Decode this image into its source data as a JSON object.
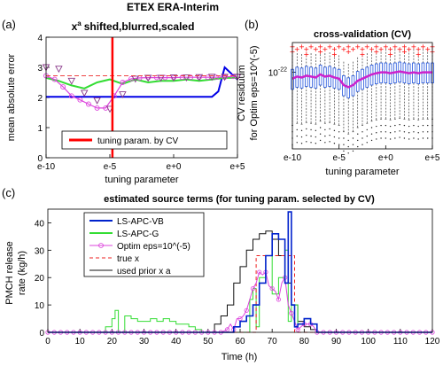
{
  "figure_title": "ETEX ERA-Interim",
  "panel_labels": [
    "(a)",
    "(b)",
    "(c)"
  ],
  "chart_data": [
    {
      "type": "line",
      "panel": "(a)",
      "title": "x^a shifted,blurred,scaled",
      "title_base": "x",
      "title_sup": "a",
      "title_rest": "shifted,blurred,scaled",
      "xlabel": "tuning parameter",
      "ylabel": "mean absolute error",
      "xlim": [
        -10,
        5
      ],
      "ylim": [
        0,
        4
      ],
      "xticks": [
        -10,
        -5,
        0,
        5
      ],
      "xtick_labels": [
        "e-10",
        "e-5",
        "e+0",
        "e+5"
      ],
      "yticks": [
        0,
        1,
        2,
        3,
        4
      ],
      "ytick_labels": [
        "0",
        "1",
        "2",
        "3",
        "4"
      ],
      "grid": false,
      "legend": {
        "placement": "bottom",
        "entries": [
          "tuning param. by CV"
        ]
      },
      "tuning_line": {
        "x": -4.8,
        "color": "#ff0000"
      },
      "series": [
        {
          "color": "#0000e6",
          "style": "solid",
          "x": [
            -10,
            -9,
            -8,
            -7,
            -6,
            -5,
            -4,
            -3,
            -2,
            -1,
            0,
            1,
            2,
            3,
            3.5,
            4,
            5
          ],
          "y": [
            2.02,
            2.02,
            2.02,
            2.02,
            2.02,
            2.02,
            2.02,
            2.02,
            2.02,
            2.02,
            2.02,
            2.02,
            2.02,
            2.02,
            2.2,
            3.0,
            2.6
          ]
        },
        {
          "color": "#33dd33",
          "style": "solid",
          "x": [
            -10,
            -9,
            -8,
            -7,
            -6,
            -5,
            -4,
            -3,
            -2,
            -1,
            0,
            1,
            2,
            3,
            4,
            5
          ],
          "y": [
            2.65,
            2.55,
            2.4,
            2.3,
            2.5,
            2.6,
            2.45,
            2.6,
            2.5,
            2.55,
            2.55,
            2.6,
            2.55,
            2.6,
            2.65,
            2.65
          ]
        },
        {
          "name": "tuning param. by CV",
          "color": "#ff0000",
          "style": "solid"
        },
        {
          "color": "#dd44dd",
          "style": "solid",
          "marker": "o",
          "x": [
            -10,
            -9.33,
            -8.67,
            -8,
            -7.33,
            -6.67,
            -6,
            -5.33,
            -4.67,
            -4,
            -3.33,
            -2.67,
            -2,
            -1.33,
            -0.67,
            0,
            0.67,
            1.33,
            2,
            2.67,
            3.33,
            4,
            4.67,
            5
          ],
          "y": [
            2.72,
            2.6,
            2.35,
            2.05,
            1.92,
            1.78,
            1.65,
            1.65,
            2.05,
            2.5,
            2.62,
            2.65,
            2.66,
            2.66,
            2.66,
            2.66,
            2.67,
            2.67,
            2.67,
            2.67,
            2.67,
            2.68,
            2.7,
            2.7
          ]
        },
        {
          "color": "#8a3a8a",
          "style": "none",
          "marker": "v",
          "x": [
            -10,
            -9,
            -8,
            -7,
            -6,
            -5,
            -4,
            -3,
            -2,
            -1,
            0,
            1,
            2,
            3,
            4,
            5
          ],
          "y": [
            3.0,
            2.95,
            2.55,
            2.15,
            1.9,
            1.62,
            2.1,
            2.62,
            2.65,
            2.65,
            2.66,
            2.66,
            2.67,
            2.68,
            2.68,
            2.68
          ]
        },
        {
          "color": "#ee4444",
          "style": "dashed",
          "x": [
            -10,
            5
          ],
          "y": [
            2.72,
            2.72
          ]
        }
      ]
    },
    {
      "type": "box",
      "panel": "(b)",
      "title": "cross-validation (CV)",
      "xlabel": "tuning parameter",
      "ylabel": "CV residuum for Optim eps=10^(-5)",
      "ylabel_line1": "CV residuum",
      "ylabel_line2": "for Optim eps=10^(-5)",
      "xlim": [
        -10,
        5
      ],
      "yscale": "log",
      "ylim_exp": [
        -23.8,
        -21.3
      ],
      "xticks": [
        -10,
        -5,
        0,
        5
      ],
      "xtick_labels": [
        "e-10",
        "e-5",
        "e+0",
        "e+5"
      ],
      "ytick_label_base": "10",
      "ytick_label_exp": "-22",
      "ytick_value_exp": -22,
      "box_color": "#2255dd",
      "median_color": "#cc22cc",
      "outlier_color": "#ff2222",
      "whisker_color": "#222222",
      "boxes": {
        "x": [
          -10,
          -9.5,
          -9,
          -8.5,
          -8,
          -7.5,
          -7,
          -6.5,
          -6,
          -5.5,
          -5,
          -4.5,
          -4,
          -3.5,
          -3,
          -2.5,
          -2,
          -1.5,
          -1,
          -0.5,
          0,
          0.5,
          1,
          1.5,
          2,
          2.5,
          3,
          3.5,
          4,
          4.5,
          5
        ],
        "median_exp": [
          -22.15,
          -22.1,
          -22.12,
          -22.08,
          -22.1,
          -22.12,
          -22.05,
          -22.1,
          -22.08,
          -22.12,
          -22.15,
          -22.3,
          -22.35,
          -22.3,
          -22.2,
          -22.15,
          -22.1,
          -22.05,
          -22.02,
          -22.0,
          -22.0,
          -22.02,
          -22.0,
          -21.98,
          -22.0,
          -22.02,
          -22.0,
          -22.02,
          -22.0,
          -22.0,
          -22.0
        ]
      }
    },
    {
      "type": "line",
      "panel": "(c)",
      "title": "estimated source terms (for tuning param. selected by CV)",
      "xlabel": "Time (h)",
      "ylabel": "PMCH release rate (kg/h)",
      "ylabel_line1": "PMCH release",
      "ylabel_line2": "rate (kg/h)",
      "xlim": [
        0,
        120
      ],
      "ylim": [
        0,
        45
      ],
      "xticks": [
        0,
        10,
        20,
        30,
        40,
        50,
        60,
        70,
        80,
        90,
        100,
        110,
        120
      ],
      "xtick_labels": [
        "0",
        "10",
        "20",
        "30",
        "40",
        "50",
        "60",
        "70",
        "80",
        "90",
        "100",
        "110",
        "120"
      ],
      "yticks": [
        0,
        10,
        20,
        30,
        40
      ],
      "ytick_labels": [
        "0",
        "10",
        "20",
        "30",
        "40"
      ],
      "grid": false,
      "legend": {
        "placement": "top-left",
        "entries": [
          "LS-APC-VB",
          "LS-APC-G",
          "Optim eps=10^(-5)",
          "true x",
          "used prior x a"
        ]
      },
      "series": [
        {
          "name": "LS-APC-VB",
          "color": "#0022cc",
          "style": "step",
          "x": [
            0,
            56,
            58,
            60,
            62,
            64,
            66,
            68,
            70,
            72,
            74,
            75,
            76,
            77,
            78,
            80,
            82,
            84,
            120
          ],
          "y": [
            0,
            0,
            2,
            4,
            6,
            10,
            18,
            28,
            36,
            34,
            18,
            44,
            10,
            2,
            3,
            5,
            3,
            0,
            0
          ]
        },
        {
          "name": "LS-APC-G",
          "color": "#33dd33",
          "style": "step",
          "x": [
            0,
            18,
            20,
            21,
            22,
            24,
            26,
            28,
            30,
            32,
            34,
            36,
            38,
            40,
            42,
            44,
            46,
            48,
            62,
            63,
            64,
            65,
            66,
            68,
            70,
            72,
            74,
            75,
            76,
            78,
            80,
            82,
            84,
            120
          ],
          "y": [
            0,
            2,
            5,
            8,
            0,
            6,
            5,
            4,
            4,
            5,
            4,
            5,
            4,
            3,
            3,
            2,
            1,
            0,
            0,
            12,
            16,
            2,
            20,
            28,
            14,
            20,
            30,
            4,
            10,
            3,
            5,
            3,
            0,
            0
          ]
        },
        {
          "name": "Optim eps=10^(-5)",
          "color": "#dd44dd",
          "style": "solid",
          "marker": "o",
          "x": [
            0,
            48,
            54,
            56,
            57,
            58,
            59,
            60,
            61,
            62,
            63,
            64,
            65,
            66,
            67,
            68,
            69,
            70,
            71,
            72,
            73,
            74,
            75,
            76,
            77,
            78,
            79,
            80,
            81,
            82,
            83,
            84,
            86,
            90,
            120
          ],
          "y": [
            0,
            0,
            0,
            1,
            3,
            1,
            5,
            5,
            6,
            8,
            12,
            16,
            18,
            22,
            21,
            22,
            17,
            16,
            15,
            12,
            18,
            20,
            10,
            7,
            4,
            1,
            2,
            3,
            3,
            3,
            2,
            0,
            0,
            0,
            0
          ]
        },
        {
          "name": "true x",
          "color": "#ee2222",
          "style": "dashed-step",
          "x": [
            0,
            65,
            77,
            120
          ],
          "y": [
            0,
            28,
            0,
            0
          ]
        },
        {
          "name": "used prior x a",
          "color": "#111111",
          "style": "step",
          "x": [
            0,
            50,
            52,
            54,
            56,
            58,
            60,
            62,
            64,
            66,
            68,
            70,
            72,
            74,
            76,
            78,
            80,
            82,
            84,
            120
          ],
          "y": [
            0,
            0,
            3,
            6,
            10,
            18,
            24,
            30,
            34,
            36,
            37,
            34,
            28,
            18,
            10,
            4,
            2,
            1,
            0,
            0
          ]
        }
      ]
    }
  ]
}
